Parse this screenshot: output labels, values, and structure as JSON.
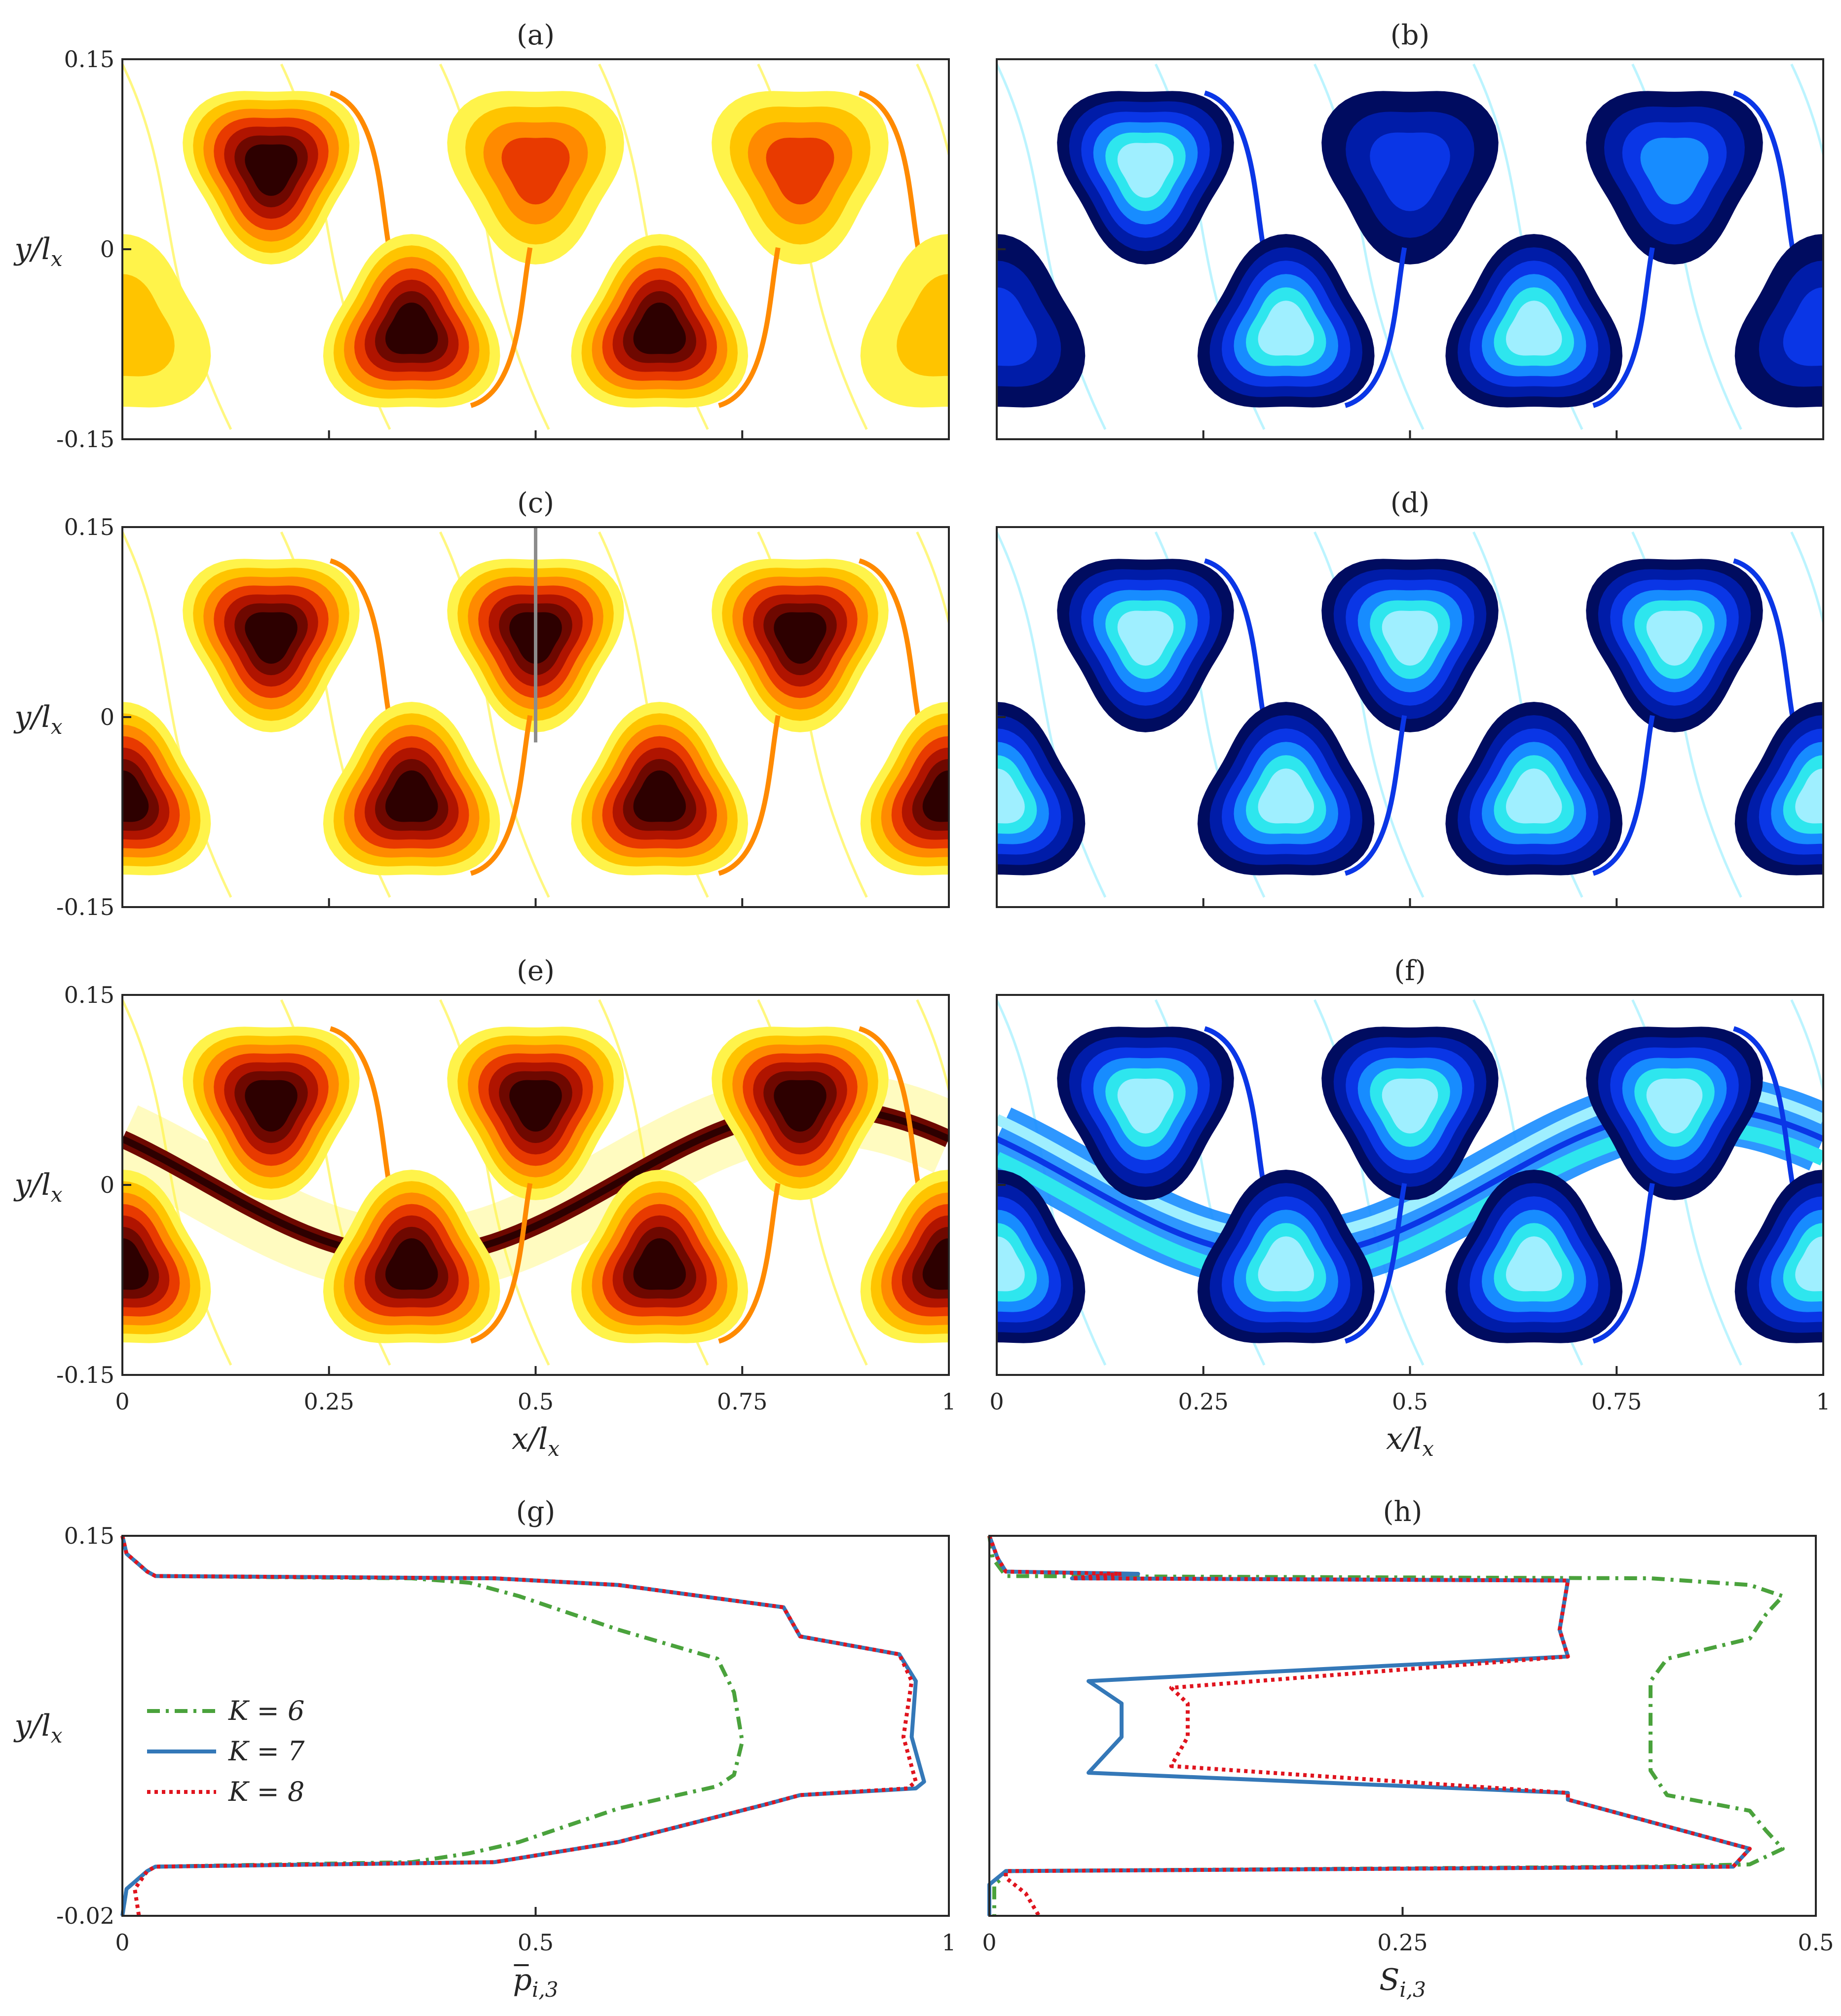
{
  "colors": {
    "hot": [
      "#fffde0",
      "#fff34a",
      "#ffc400",
      "#ff8a00",
      "#e83a00",
      "#b01400",
      "#6e0800",
      "#2d0000"
    ],
    "cool": [
      "#e4fbff",
      "#9fefff",
      "#2ee6ee",
      "#178cff",
      "#0a36e6",
      "#001ca8",
      "#000c60"
    ],
    "k6": "#4aa23c",
    "k7": "#3478b8",
    "k8": "#e0141e",
    "cut_line": "#8c8c8c"
  },
  "chart_data": [
    {
      "id": "a",
      "label": "(a)",
      "type": "heatmap",
      "colormap": "hot",
      "xlim": [
        0,
        1
      ],
      "ylim": [
        -0.15,
        0.15
      ],
      "ylabel": "y/l",
      "ylabel_sub": "x",
      "yticks": [
        "0.15",
        "0",
        "-0.15"
      ],
      "xticks": [],
      "vortices": [
        {
          "x": 0.18,
          "y": 0.065,
          "dir": "up",
          "intensity": 0.95,
          "tail": true
        },
        {
          "x": 0.5,
          "y": 0.065,
          "dir": "up",
          "intensity": 0.45,
          "tail": false
        },
        {
          "x": 0.82,
          "y": 0.065,
          "dir": "up",
          "intensity": 0.55,
          "tail": true
        },
        {
          "x": 0.35,
          "y": -0.065,
          "dir": "down",
          "intensity": 0.95,
          "tail": true
        },
        {
          "x": 0.65,
          "y": -0.065,
          "dir": "down",
          "intensity": 0.95,
          "tail": true
        },
        {
          "x": 0.0,
          "y": -0.065,
          "dir": "down",
          "intensity": 0.2,
          "tail": false
        },
        {
          "x": 1.0,
          "y": -0.065,
          "dir": "down",
          "intensity": 0.2,
          "tail": false
        }
      ]
    },
    {
      "id": "b",
      "label": "(b)",
      "type": "heatmap",
      "colormap": "cool",
      "xlim": [
        0,
        1
      ],
      "ylim": [
        -0.15,
        0.15
      ],
      "yticks": [],
      "xticks": [],
      "vortices": [
        {
          "x": 0.18,
          "y": 0.065,
          "dir": "up",
          "intensity": 0.35,
          "tail": true
        },
        {
          "x": 0.5,
          "y": 0.065,
          "dir": "up",
          "intensity": 0.05,
          "tail": false
        },
        {
          "x": 0.82,
          "y": 0.065,
          "dir": "up",
          "intensity": 0.15,
          "tail": true
        },
        {
          "x": 0.35,
          "y": -0.065,
          "dir": "down",
          "intensity": 0.38,
          "tail": true
        },
        {
          "x": 0.65,
          "y": -0.065,
          "dir": "down",
          "intensity": 0.38,
          "tail": true
        },
        {
          "x": 0.0,
          "y": -0.065,
          "dir": "down",
          "intensity": 0.05,
          "tail": false
        },
        {
          "x": 1.0,
          "y": -0.065,
          "dir": "down",
          "intensity": 0.05,
          "tail": false
        }
      ]
    },
    {
      "id": "c",
      "label": "(c)",
      "type": "heatmap",
      "colormap": "hot",
      "xlim": [
        0,
        1
      ],
      "ylim": [
        -0.15,
        0.15
      ],
      "ylabel": "y/l",
      "ylabel_sub": "x",
      "yticks": [
        "0.15",
        "0",
        "-0.15"
      ],
      "xticks": [],
      "cut_line": {
        "x": 0.5,
        "y0": 0.15,
        "y1": -0.02
      },
      "vortices": [
        {
          "x": 0.18,
          "y": 0.065,
          "dir": "up",
          "intensity": 0.95,
          "tail": true
        },
        {
          "x": 0.5,
          "y": 0.065,
          "dir": "up",
          "intensity": 0.95,
          "tail": false
        },
        {
          "x": 0.82,
          "y": 0.065,
          "dir": "up",
          "intensity": 0.95,
          "tail": true
        },
        {
          "x": 0.35,
          "y": -0.065,
          "dir": "down",
          "intensity": 0.95,
          "tail": true
        },
        {
          "x": 0.65,
          "y": -0.065,
          "dir": "down",
          "intensity": 0.95,
          "tail": true
        },
        {
          "x": 0.0,
          "y": -0.065,
          "dir": "down",
          "intensity": 0.95,
          "tail": false
        },
        {
          "x": 1.0,
          "y": -0.065,
          "dir": "down",
          "intensity": 0.95,
          "tail": false
        }
      ]
    },
    {
      "id": "d",
      "label": "(d)",
      "type": "heatmap",
      "colormap": "cool",
      "xlim": [
        0,
        1
      ],
      "ylim": [
        -0.15,
        0.15
      ],
      "yticks": [],
      "xticks": [],
      "vortices": [
        {
          "x": 0.18,
          "y": 0.065,
          "dir": "up",
          "intensity": 0.38,
          "tail": true
        },
        {
          "x": 0.5,
          "y": 0.065,
          "dir": "up",
          "intensity": 0.38,
          "tail": false
        },
        {
          "x": 0.82,
          "y": 0.065,
          "dir": "up",
          "intensity": 0.38,
          "tail": true
        },
        {
          "x": 0.35,
          "y": -0.065,
          "dir": "down",
          "intensity": 0.38,
          "tail": true
        },
        {
          "x": 0.65,
          "y": -0.065,
          "dir": "down",
          "intensity": 0.38,
          "tail": true
        },
        {
          "x": 0.0,
          "y": -0.065,
          "dir": "down",
          "intensity": 0.38,
          "tail": false
        },
        {
          "x": 1.0,
          "y": -0.065,
          "dir": "down",
          "intensity": 0.38,
          "tail": false
        }
      ]
    },
    {
      "id": "e",
      "label": "(e)",
      "type": "heatmap",
      "colormap": "hot",
      "xlim": [
        0,
        1
      ],
      "ylim": [
        -0.15,
        0.15
      ],
      "ylabel": "y/l",
      "ylabel_sub": "x",
      "xlabel": "x/l",
      "xlabel_sub": "x",
      "yticks": [
        "0.15",
        "0",
        "-0.15"
      ],
      "xticks": [
        "0",
        "0.25",
        "0.5",
        "0.75",
        "1"
      ],
      "band": true,
      "vortices": [
        {
          "x": 0.18,
          "y": 0.065,
          "dir": "up",
          "intensity": 0.95,
          "tail": true
        },
        {
          "x": 0.5,
          "y": 0.065,
          "dir": "up",
          "intensity": 0.95,
          "tail": false
        },
        {
          "x": 0.82,
          "y": 0.065,
          "dir": "up",
          "intensity": 0.95,
          "tail": true
        },
        {
          "x": 0.35,
          "y": -0.065,
          "dir": "down",
          "intensity": 0.95,
          "tail": true
        },
        {
          "x": 0.65,
          "y": -0.065,
          "dir": "down",
          "intensity": 0.95,
          "tail": true
        },
        {
          "x": 0.0,
          "y": -0.065,
          "dir": "down",
          "intensity": 0.95,
          "tail": false
        },
        {
          "x": 1.0,
          "y": -0.065,
          "dir": "down",
          "intensity": 0.95,
          "tail": false
        }
      ]
    },
    {
      "id": "f",
      "label": "(f)",
      "type": "heatmap",
      "colormap": "cool",
      "xlim": [
        0,
        1
      ],
      "ylim": [
        -0.15,
        0.15
      ],
      "xlabel": "x/l",
      "xlabel_sub": "x",
      "yticks": [],
      "xticks": [
        "0",
        "0.25",
        "0.5",
        "0.75",
        "1"
      ],
      "band": true,
      "vortices": [
        {
          "x": 0.18,
          "y": 0.065,
          "dir": "up",
          "intensity": 0.38,
          "tail": true
        },
        {
          "x": 0.5,
          "y": 0.065,
          "dir": "up",
          "intensity": 0.38,
          "tail": false
        },
        {
          "x": 0.82,
          "y": 0.065,
          "dir": "up",
          "intensity": 0.38,
          "tail": true
        },
        {
          "x": 0.35,
          "y": -0.065,
          "dir": "down",
          "intensity": 0.38,
          "tail": true
        },
        {
          "x": 0.65,
          "y": -0.065,
          "dir": "down",
          "intensity": 0.38,
          "tail": true
        },
        {
          "x": 0.0,
          "y": -0.065,
          "dir": "down",
          "intensity": 0.38,
          "tail": false
        },
        {
          "x": 1.0,
          "y": -0.065,
          "dir": "down",
          "intensity": 0.38,
          "tail": false
        }
      ]
    },
    {
      "id": "g",
      "label": "(g)",
      "type": "line",
      "xlim": [
        0,
        1
      ],
      "ylim": [
        -0.02,
        0.15
      ],
      "ylabel": "y/l",
      "ylabel_sub": "x",
      "xlabel": "p",
      "xlabel_bar": true,
      "xlabel_sub": "i,3",
      "xticks": [
        "0",
        "0.5",
        "1"
      ],
      "xtick_values": [
        0,
        0.5,
        1
      ],
      "yticks": [
        "0.15",
        "-0.02"
      ],
      "ytick_values": [
        0.15,
        -0.02
      ],
      "legend": {
        "position": "center-left",
        "entries": [
          "K = 6",
          "K = 7",
          "K = 8"
        ]
      },
      "series": [
        {
          "name": "K = 6",
          "style": "dashdot",
          "x": [
            0,
            0.005,
            0.03,
            0.04,
            0.35,
            0.42,
            0.48,
            0.6,
            0.72,
            0.74,
            0.75,
            0.74,
            0.72,
            0.6,
            0.48,
            0.42,
            0.35,
            0.04,
            0.03,
            0.005,
            0
          ],
          "y": [
            0.15,
            0.142,
            0.134,
            0.132,
            0.131,
            0.129,
            0.123,
            0.108,
            0.095,
            0.08,
            0.058,
            0.043,
            0.038,
            0.028,
            0.013,
            0.008,
            0.004,
            0.002,
            0.0,
            -0.008,
            -0.02
          ]
        },
        {
          "name": "K = 7",
          "style": "solid",
          "x": [
            0,
            0.005,
            0.03,
            0.04,
            0.45,
            0.6,
            0.8,
            0.82,
            0.94,
            0.96,
            0.955,
            0.97,
            0.96,
            0.82,
            0.78,
            0.6,
            0.45,
            0.04,
            0.03,
            0.005,
            0
          ],
          "y": [
            0.15,
            0.142,
            0.134,
            0.132,
            0.131,
            0.128,
            0.118,
            0.105,
            0.097,
            0.085,
            0.06,
            0.04,
            0.037,
            0.034,
            0.03,
            0.013,
            0.004,
            0.002,
            0.0,
            -0.008,
            -0.02
          ]
        },
        {
          "name": "K = 8",
          "style": "dotted",
          "x": [
            0,
            0.005,
            0.03,
            0.04,
            0.45,
            0.6,
            0.8,
            0.82,
            0.94,
            0.955,
            0.945,
            0.96,
            0.95,
            0.82,
            0.78,
            0.6,
            0.45,
            0.04,
            0.03,
            0.015,
            0.02
          ],
          "y": [
            0.15,
            0.142,
            0.134,
            0.132,
            0.131,
            0.128,
            0.118,
            0.105,
            0.097,
            0.085,
            0.06,
            0.04,
            0.037,
            0.034,
            0.03,
            0.013,
            0.004,
            0.002,
            0.0,
            -0.008,
            -0.02
          ]
        }
      ]
    },
    {
      "id": "h",
      "label": "(h)",
      "type": "line",
      "xlim": [
        0,
        0.5
      ],
      "ylim": [
        -0.02,
        0.15
      ],
      "xlabel": "S",
      "xlabel_sub": "i,3",
      "xticks": [
        "0",
        "0.25",
        "0.5"
      ],
      "xtick_values": [
        0,
        0.25,
        0.5
      ],
      "yticks": [],
      "series": [
        {
          "name": "K = 6",
          "style": "dashdot",
          "x": [
            0,
            0.002,
            0.008,
            0.01,
            0.4,
            0.46,
            0.48,
            0.47,
            0.46,
            0.41,
            0.4,
            0.4,
            0.41,
            0.46,
            0.47,
            0.48,
            0.46,
            0.4,
            0.01,
            0.008,
            0.003,
            0.003
          ],
          "y": [
            0.15,
            0.14,
            0.134,
            0.132,
            0.131,
            0.128,
            0.123,
            0.115,
            0.104,
            0.095,
            0.085,
            0.045,
            0.034,
            0.027,
            0.018,
            0.01,
            0.003,
            0.002,
            0.0,
            -0.003,
            -0.006,
            -0.02
          ]
        },
        {
          "name": "K = 7",
          "style": "solid",
          "x": [
            0,
            0.005,
            0.01,
            0.09,
            0.05,
            0.35,
            0.345,
            0.35,
            0.06,
            0.08,
            0.08,
            0.06,
            0.35,
            0.35,
            0.46,
            0.45,
            0.01,
            0.005,
            0,
            0
          ],
          "y": [
            0.15,
            0.14,
            0.134,
            0.133,
            0.131,
            0.13,
            0.108,
            0.096,
            0.085,
            0.075,
            0.06,
            0.044,
            0.035,
            0.032,
            0.01,
            0.002,
            0.0,
            -0.003,
            -0.006,
            -0.02
          ]
        },
        {
          "name": "K = 8",
          "style": "dotted",
          "x": [
            0,
            0.005,
            0.01,
            0.08,
            0.05,
            0.35,
            0.345,
            0.35,
            0.11,
            0.12,
            0.12,
            0.11,
            0.35,
            0.35,
            0.46,
            0.45,
            0.01,
            0.01,
            0.022,
            0.03
          ],
          "y": [
            0.15,
            0.14,
            0.134,
            0.133,
            0.131,
            0.13,
            0.108,
            0.096,
            0.082,
            0.075,
            0.06,
            0.047,
            0.035,
            0.032,
            0.01,
            0.002,
            0.0,
            -0.003,
            -0.01,
            -0.02
          ]
        }
      ]
    }
  ]
}
